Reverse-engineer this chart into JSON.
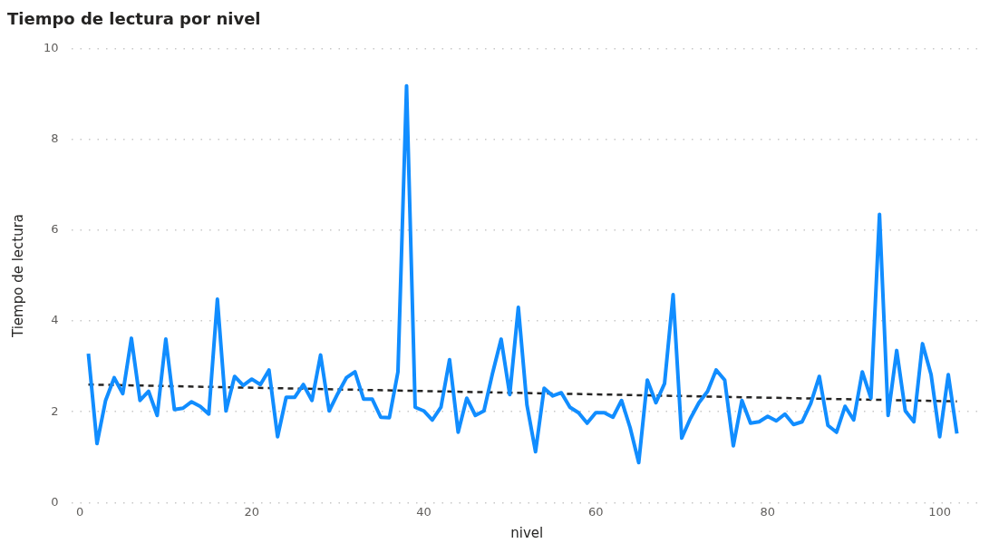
{
  "chart_data": {
    "type": "line",
    "title": "Tiempo de lectura por nivel",
    "xlabel": "nivel",
    "ylabel": "Tiempo de lectura",
    "x": [
      1,
      2,
      3,
      4,
      5,
      6,
      7,
      8,
      9,
      10,
      11,
      12,
      13,
      14,
      15,
      16,
      17,
      18,
      19,
      20,
      21,
      22,
      23,
      24,
      25,
      26,
      27,
      28,
      29,
      30,
      31,
      32,
      33,
      34,
      35,
      36,
      37,
      38,
      39,
      40,
      41,
      42,
      43,
      44,
      45,
      46,
      47,
      48,
      49,
      50,
      51,
      52,
      53,
      54,
      55,
      56,
      57,
      58,
      59,
      60,
      61,
      62,
      63,
      64,
      65,
      66,
      67,
      68,
      69,
      70,
      71,
      72,
      73,
      74,
      75,
      76,
      77,
      78,
      79,
      80,
      81,
      82,
      83,
      84,
      85,
      86,
      87,
      88,
      89,
      90,
      91,
      92,
      93,
      94,
      95,
      96,
      97,
      98,
      99,
      100,
      101,
      102
    ],
    "series": [
      {
        "color": "#118dff",
        "line_style": "solid",
        "values": [
          3.28,
          1.3,
          2.25,
          2.75,
          2.4,
          3.62,
          2.25,
          2.45,
          1.92,
          3.6,
          2.05,
          2.08,
          2.22,
          2.12,
          1.95,
          4.48,
          2.02,
          2.78,
          2.58,
          2.72,
          2.6,
          2.92,
          1.45,
          2.32,
          2.32,
          2.6,
          2.25,
          3.25,
          2.02,
          2.4,
          2.75,
          2.88,
          2.28,
          2.28,
          1.88,
          1.87,
          2.88,
          9.18,
          2.1,
          2.02,
          1.82,
          2.1,
          3.15,
          1.55,
          2.3,
          1.92,
          2.02,
          2.85,
          3.6,
          2.38,
          4.3,
          2.15,
          1.12,
          2.52,
          2.35,
          2.42,
          2.1,
          1.98,
          1.75,
          1.98,
          1.98,
          1.88,
          2.25,
          1.65,
          0.88,
          2.7,
          2.2,
          2.62,
          4.58,
          1.42,
          1.85,
          2.2,
          2.45,
          2.92,
          2.7,
          1.25,
          2.25,
          1.75,
          1.78,
          1.9,
          1.8,
          1.95,
          1.72,
          1.78,
          2.18,
          2.78,
          1.7,
          1.55,
          2.12,
          1.82,
          2.88,
          2.3,
          6.35,
          1.92,
          3.35,
          2.02,
          1.78,
          3.5,
          2.82,
          1.45,
          2.82,
          1.52
        ]
      },
      {
        "type": "line",
        "color": "#252423",
        "line_style": "dashed",
        "x": [
          1,
          102
        ],
        "values": [
          2.6,
          2.23
        ]
      }
    ],
    "xlim": [
      -1,
      105
    ],
    "xticks": [
      0,
      20,
      40,
      60,
      80,
      100
    ],
    "ylim": [
      0,
      10
    ],
    "yticks": [
      0,
      2,
      4,
      6,
      8,
      10
    ],
    "grid": "y",
    "legend": false,
    "marker": "none"
  }
}
